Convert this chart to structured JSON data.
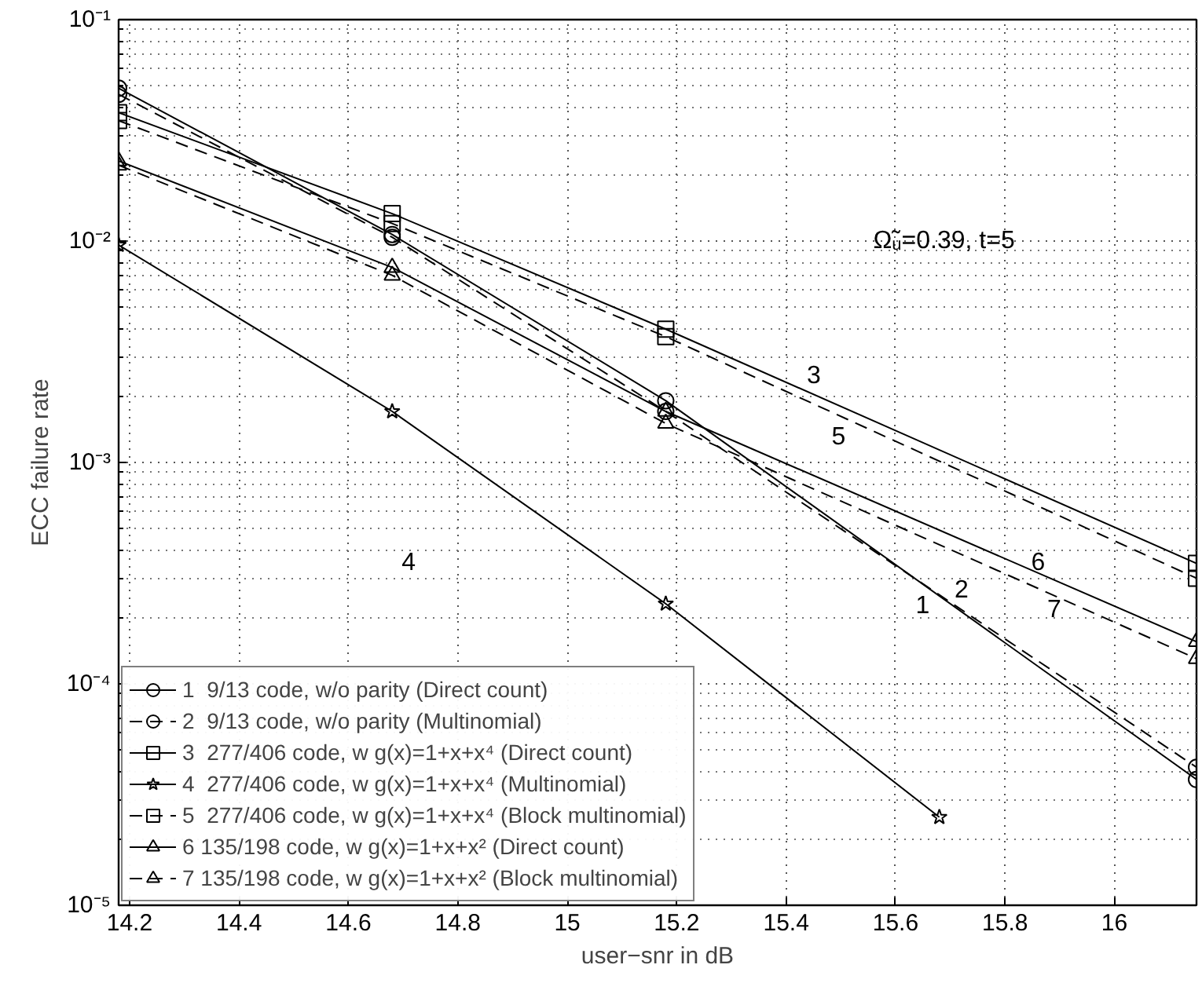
{
  "chart_data": {
    "type": "line",
    "xlabel": "user−snr in dB",
    "ylabel": "ECC failure rate",
    "log": "y",
    "grid": true,
    "legend": "bottom left",
    "xlim": [
      14.18,
      16.15
    ],
    "xticks": [
      14.2,
      14.4,
      14.6,
      14.8,
      15,
      15.2,
      15.4,
      15.6,
      15.8,
      16
    ],
    "ylim": [
      1e-05,
      0.1
    ],
    "yticks": [
      {
        "value": 1e-05,
        "label": "10⁻⁵"
      },
      {
        "value": 0.0001,
        "label": "10⁻⁴"
      },
      {
        "value": 0.001,
        "label": "10⁻³"
      },
      {
        "value": 0.01,
        "label": "10⁻²"
      },
      {
        "value": 0.1,
        "label": "10⁻¹"
      }
    ],
    "series": [
      {
        "name": "1  9/13 code, w/o parity (Direct count)",
        "color": "#000000",
        "marker": "circle",
        "line_style": "solid",
        "x": [
          14.18,
          14.68,
          15.18,
          16.15
        ],
        "values": [
          0.049,
          0.0107,
          0.0019,
          3.7e-05
        ]
      },
      {
        "name": "2  9/13 code, w/o parity (Multinomial)",
        "color": "#000000",
        "marker": "circle",
        "line_style": "dashed",
        "x": [
          14.18,
          14.68,
          15.18,
          16.15
        ],
        "values": [
          0.046,
          0.0104,
          0.0017,
          4.2e-05
        ]
      },
      {
        "name": "3  277/406 code, w g(x)=1+x+x⁴ (Direct count)",
        "color": "#000000",
        "marker": "square",
        "line_style": "solid",
        "x": [
          14.18,
          14.68,
          15.18,
          16.15
        ],
        "values": [
          0.038,
          0.0133,
          0.004,
          0.00035
        ]
      },
      {
        "name": "4  277/406 code, w g(x)=1+x+x⁴ (Multinomial)",
        "color": "#000000",
        "marker": "star",
        "line_style": "solid",
        "x": [
          14.18,
          14.68,
          15.18,
          15.68
        ],
        "values": [
          0.0096,
          0.0017,
          0.00023,
          2.5e-05
        ]
      },
      {
        "name": "5  277/406 code, w g(x)=1+x+x⁴ (Block multinomial)",
        "color": "#000000",
        "marker": "square",
        "line_style": "dashed",
        "x": [
          14.18,
          14.68,
          15.18,
          16.15
        ],
        "values": [
          0.035,
          0.012,
          0.0037,
          0.0003
        ]
      },
      {
        "name": "6 135/198 code, w g(x)=1+x+x² (Direct count)",
        "color": "#000000",
        "marker": "triangle",
        "line_style": "solid",
        "x": [
          14.18,
          14.68,
          15.18,
          16.15
        ],
        "values": [
          0.023,
          0.0076,
          0.0017,
          0.000155
        ]
      },
      {
        "name": "7 135/198 code, w g(x)=1+x+x² (Block multinomial)",
        "color": "#000000",
        "marker": "triangle",
        "line_style": "dashed",
        "x": [
          14.18,
          14.68,
          15.18,
          16.15
        ],
        "values": [
          0.022,
          0.007,
          0.0015,
          0.00013
        ]
      }
    ],
    "annotations": [
      "Ω̃ᵤ=0.39, t=5",
      "1",
      "2",
      "3",
      "4",
      "5",
      "6",
      "7"
    ]
  }
}
